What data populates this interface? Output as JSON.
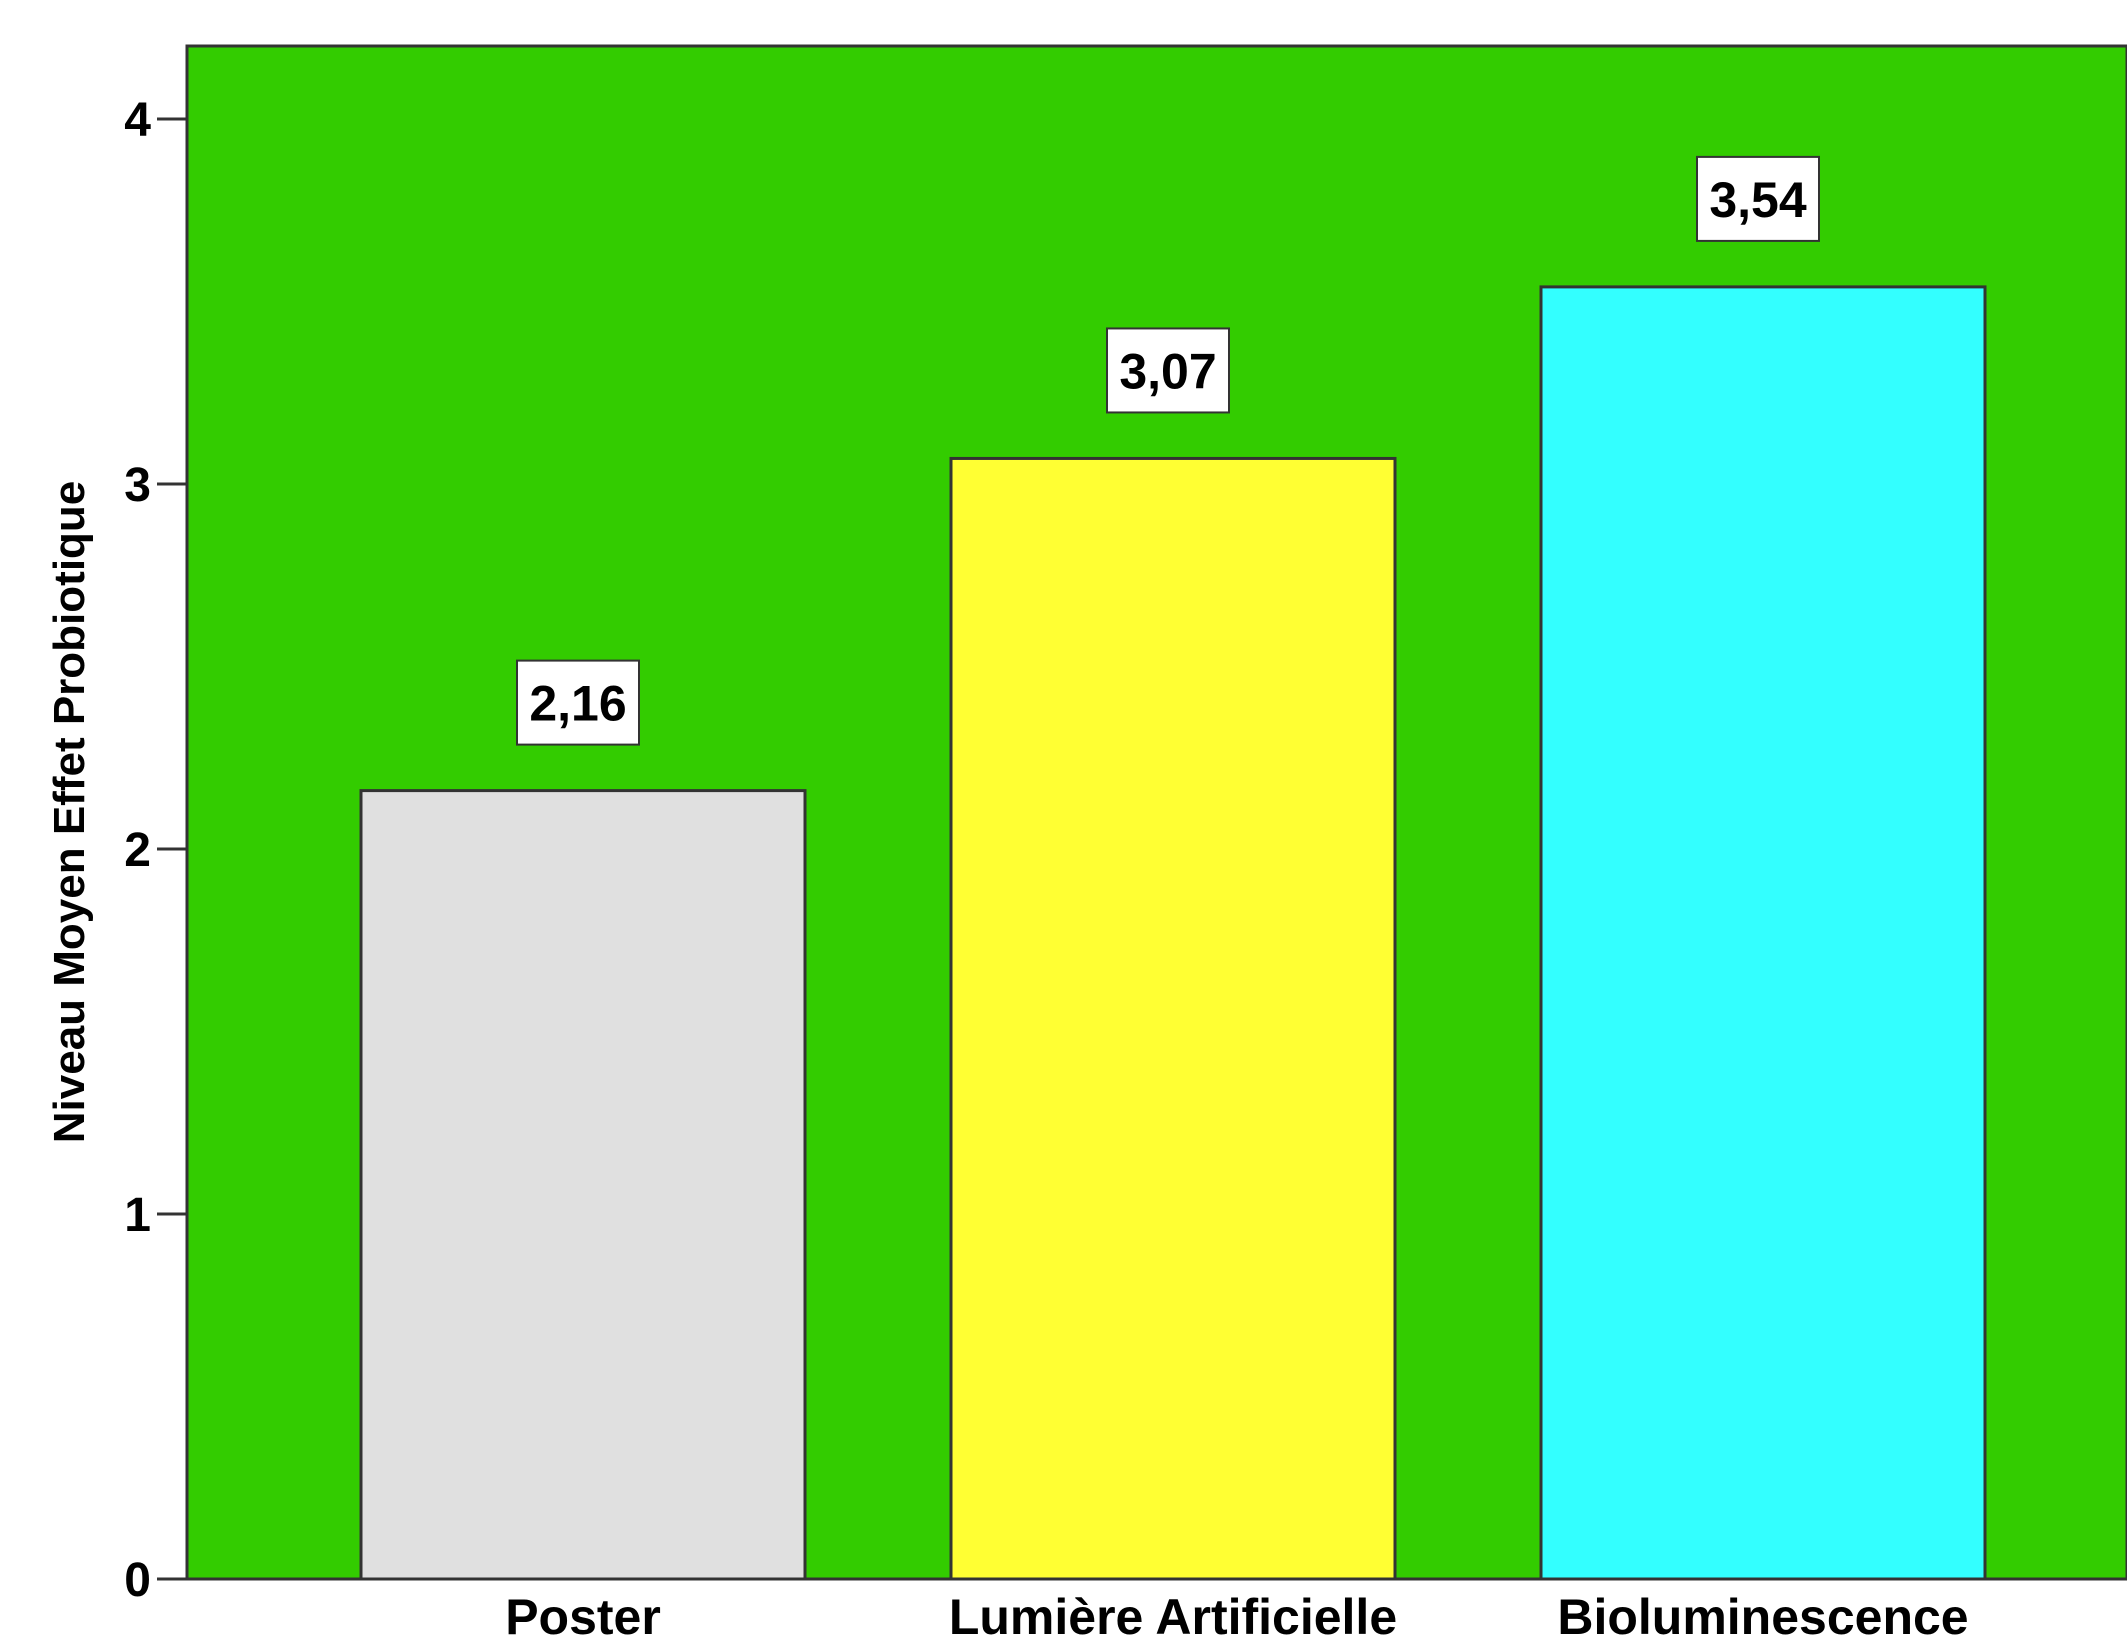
{
  "chart_data": {
    "type": "bar",
    "categories": [
      "Poster",
      "Lumière Artificielle",
      "Bioluminescence"
    ],
    "values": [
      2.16,
      3.07,
      3.54
    ],
    "data_labels": [
      "2,16",
      "3,07",
      "3,54"
    ],
    "ylabel": "Niveau Moyen Effet Probiotique",
    "xlabel": "",
    "ylim": [
      0,
      4.2
    ],
    "yticks": [
      0,
      1,
      2,
      3,
      4
    ],
    "grid": false,
    "colors": {
      "plot_background": "#33cc00",
      "bars": [
        "#e0e0e0",
        "#ffff33",
        "#33ffff"
      ],
      "bar_outline": "#333333",
      "label_box": "#ffffff"
    }
  }
}
